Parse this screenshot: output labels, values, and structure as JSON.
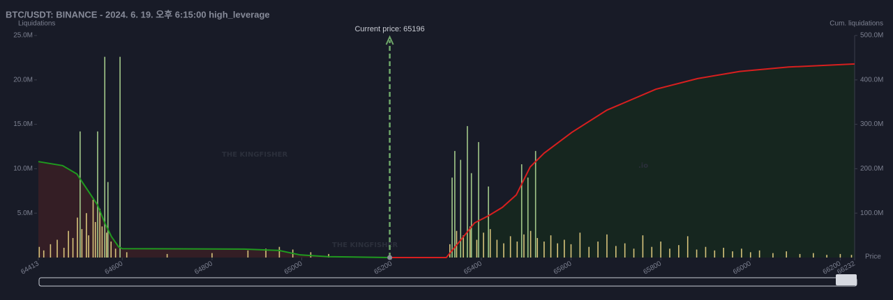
{
  "chart_data": {
    "type": "bar",
    "title": "BTC/USDT: BINANCE - 2024. 6. 19. 오후 6:15:00 high_leverage",
    "y_label": "Liquidations",
    "y2_label": "Cum. liquidations",
    "x_label": "Price",
    "watermark": "THE KINGFISHER",
    "watermark_suffix": ".io",
    "current_price": 65196,
    "current_price_label": "Current price: 65196",
    "current_price_color": "#6fa86a",
    "xlim": [
      64413,
      66232
    ],
    "xticks": [
      64413,
      64600,
      64800,
      65000,
      65200,
      65400,
      65600,
      65800,
      66000,
      66200,
      66232
    ],
    "ylim": [
      0,
      25000000
    ],
    "yticks": [
      {
        "value": 5000000,
        "label": "5.0M"
      },
      {
        "value": 10000000,
        "label": "10.0M"
      },
      {
        "value": 15000000,
        "label": "15.0M"
      },
      {
        "value": 20000000,
        "label": "20.0M"
      },
      {
        "value": 25000000,
        "label": "25.0M"
      }
    ],
    "y2lim": [
      0,
      500000000
    ],
    "y2ticks": [
      {
        "value": 100000000,
        "label": "100.0M"
      },
      {
        "value": 200000000,
        "label": "200.0M"
      },
      {
        "value": 300000000,
        "label": "300.0M"
      },
      {
        "value": 400000000,
        "label": "400.0M"
      },
      {
        "value": 500000000,
        "label": "500.0M"
      }
    ],
    "series": [
      {
        "type": "bar",
        "color": "#a3c98a",
        "x": [
          64506,
          64545,
          64561,
          64568,
          64595,
          65335,
          65341,
          65354,
          65369,
          65378,
          65394,
          65416,
          65490,
          65504,
          65521
        ],
        "values": [
          14200000,
          14200000,
          22600000,
          8500000,
          22600000,
          9000000,
          12000000,
          11000000,
          14800000,
          9500000,
          13000000,
          8000000,
          10500000,
          9000000,
          12000000
        ]
      },
      {
        "type": "bar",
        "color": "#d8c47c",
        "x": [
          64415,
          64425,
          64440,
          64455,
          64470,
          64480,
          64490,
          64500,
          64510,
          64520,
          64525,
          64535,
          64540,
          64550,
          64555,
          64565,
          64575,
          64585,
          64610,
          64700,
          64800,
          64880,
          64920,
          64950,
          64980,
          65020,
          65060,
          65330,
          65345,
          65360,
          65375,
          65390,
          65405,
          65420,
          65435,
          65450,
          65465,
          65480,
          65495,
          65510,
          65525,
          65540,
          65555,
          65570,
          65585,
          65600,
          65620,
          65640,
          65660,
          65680,
          65700,
          65720,
          65740,
          65760,
          65780,
          65800,
          65820,
          65840,
          65860,
          65880,
          65900,
          65920,
          65940,
          65960,
          65980,
          66000,
          66020,
          66050,
          66080,
          66110,
          66140,
          66170,
          66200,
          66225
        ],
        "values": [
          1200000,
          800000,
          1500000,
          2000000,
          1100000,
          3000000,
          2200000,
          4500000,
          3200000,
          5000000,
          2500000,
          6500000,
          4000000,
          5500000,
          3500000,
          2800000,
          1800000,
          1000000,
          600000,
          400000,
          500000,
          800000,
          1000000,
          1200000,
          900000,
          600000,
          400000,
          1500000,
          3000000,
          2500000,
          3500000,
          2000000,
          2800000,
          3200000,
          2000000,
          1600000,
          2400000,
          1800000,
          2600000,
          3000000,
          2200000,
          1800000,
          2500000,
          1600000,
          2000000,
          1500000,
          2800000,
          1200000,
          1800000,
          2600000,
          1300000,
          1600000,
          1000000,
          2500000,
          1200000,
          1800000,
          1000000,
          1400000,
          2400000,
          900000,
          1200000,
          800000,
          1100000,
          700000,
          1000000,
          600000,
          800000,
          500000,
          700000,
          400000,
          500000,
          300000,
          400000,
          300000
        ]
      },
      {
        "type": "line",
        "axis": "y2",
        "color": "#1f9a1f",
        "fill": "#3a1e26",
        "x": [
          64413,
          64467,
          64499,
          64514,
          64530,
          64545,
          64561,
          64576,
          64592,
          64600,
          64872,
          64949,
          64996,
          65058,
          65196
        ],
        "values": [
          216000000,
          207000000,
          188000000,
          165000000,
          141000000,
          118000000,
          78000000,
          47000000,
          24000000,
          20000000,
          19000000,
          16000000,
          6000000,
          2000000,
          0
        ]
      },
      {
        "type": "line",
        "axis": "y2",
        "color": "#d81f1f",
        "fill": "#16281f",
        "x": [
          65196,
          65322,
          65354,
          65385,
          65416,
          65447,
          65478,
          65509,
          65540,
          65602,
          65680,
          65789,
          65882,
          65976,
          66085,
          66232
        ],
        "values": [
          0,
          0,
          39000000,
          78000000,
          94000000,
          113000000,
          141000000,
          204000000,
          235000000,
          282000000,
          332000000,
          379000000,
          403000000,
          419000000,
          429000000,
          436000000
        ]
      }
    ]
  }
}
